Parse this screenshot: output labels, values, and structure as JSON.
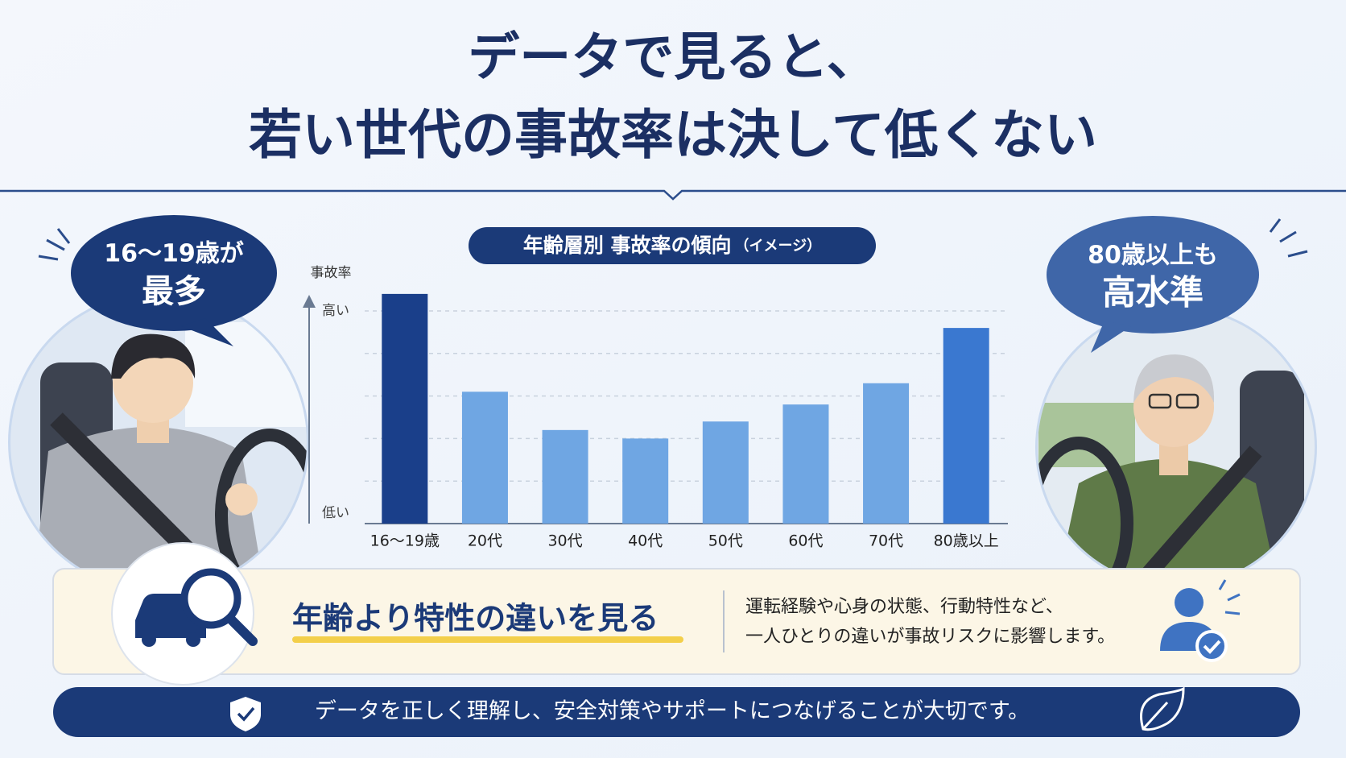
{
  "title_lines": [
    "データで見ると、",
    "若い世代の事故率は決して低くない"
  ],
  "left_bubble": [
    "16〜19歳が",
    "最多"
  ],
  "right_bubble": [
    "80歳以上も",
    "高水準"
  ],
  "chart_data": {
    "type": "bar",
    "title": "年齢層別 事故率の傾向",
    "subtitle": "（イメージ）",
    "y_label": "事故率",
    "categories": [
      "16〜19歳",
      "20代",
      "30代",
      "40代",
      "50代",
      "60代",
      "70代",
      "80歳以上"
    ],
    "values": [
      5.4,
      3.1,
      2.2,
      2.0,
      2.4,
      2.8,
      3.3,
      4.6
    ],
    "colors": [
      "#1a3f8a",
      "#6fa6e3",
      "#6fa6e3",
      "#6fa6e3",
      "#6fa6e3",
      "#6fa6e3",
      "#6fa6e3",
      "#3a78d0"
    ],
    "ylim": [
      0,
      5.5
    ],
    "yticks": [
      {
        "value": 5,
        "label": "高い"
      },
      {
        "value": 0,
        "label": "低い"
      }
    ],
    "grid": true,
    "ygrid": [
      1,
      2,
      3,
      4,
      5
    ]
  },
  "insight": {
    "heading": "年齢より特性の違いを見る",
    "lines": [
      "運転経験や心身の状態、行動特性など、",
      "一人ひとりの違いが事故リスクに影響します。"
    ]
  },
  "footer": "データを正しく理解し、安全対策やサポートにつなげることが大切です。"
}
